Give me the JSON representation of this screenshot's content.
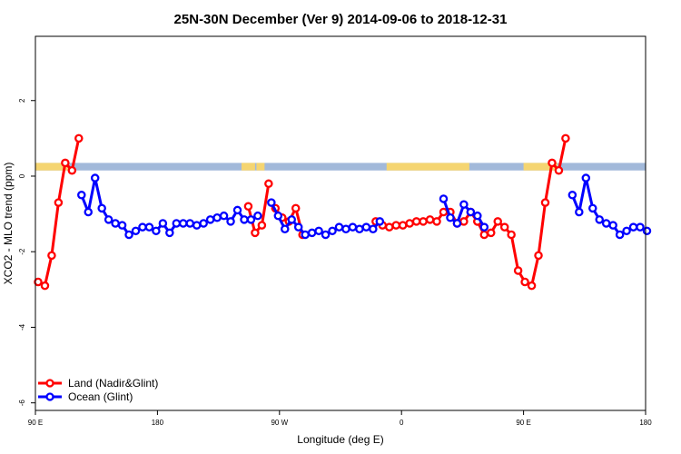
{
  "chart_data": {
    "type": "line",
    "title": "25N-30N December (Ver 9)   2014-09-06 to 2018-12-31",
    "xlabel": "Longitude (deg E)",
    "ylabel": "XCO2 - MLO trend (ppm)",
    "xlim": [
      90,
      540
    ],
    "ylim": [
      -6.2,
      3.7
    ],
    "grid": false,
    "legend_position": "bottom-left",
    "x_ticks": [
      {
        "value": 90,
        "label": "90 E"
      },
      {
        "value": 180,
        "label": "180"
      },
      {
        "value": 270,
        "label": "90 W"
      },
      {
        "value": 360,
        "label": "0"
      },
      {
        "value": 450,
        "label": "90 E"
      },
      {
        "value": 540,
        "label": "180"
      }
    ],
    "y_ticks": [
      {
        "value": -6,
        "label": "-6"
      },
      {
        "value": -4,
        "label": "-4"
      },
      {
        "value": -2,
        "label": "-2"
      },
      {
        "value": 0,
        "label": "0"
      },
      {
        "value": 2,
        "label": "2"
      }
    ],
    "land_sea_strip": {
      "y_range": [
        0.15,
        0.35
      ],
      "land_color": "#f5d571",
      "ocean_color": "#a2b9da",
      "land_segments": [
        [
          90,
          115
        ],
        [
          242,
          252
        ],
        [
          253,
          259
        ],
        [
          349,
          410
        ],
        [
          450,
          475
        ]
      ]
    },
    "series": [
      {
        "name": "Land (Nadir&Glint)",
        "color": "#ff0000",
        "segments": [
          {
            "x": [
              92,
              97,
              102,
              107,
              112,
              117,
              122
            ],
            "y": [
              -2.8,
              -2.9,
              -2.1,
              -0.7,
              0.35,
              0.15,
              1.0
            ]
          },
          {
            "x": [
              247,
              252,
              257,
              262
            ],
            "y": [
              -0.8,
              -1.5,
              -1.3,
              -0.2
            ]
          },
          {
            "x": [
              267,
              272,
              277,
              282,
              287
            ],
            "y": [
              -0.85,
              -1.1,
              -1.2,
              -0.85,
              -1.55
            ]
          },
          {
            "x": [
              341,
              346,
              351,
              356,
              361,
              366,
              371,
              376,
              381,
              386,
              391,
              396,
              401,
              406,
              411,
              416
            ],
            "y": [
              -1.2,
              -1.3,
              -1.35,
              -1.3,
              -1.3,
              -1.25,
              -1.2,
              -1.2,
              -1.15,
              -1.2,
              -0.95,
              -0.95,
              -1.25,
              -1.2,
              -0.95,
              -1.2
            ]
          },
          {
            "x": [
              416,
              421,
              426,
              431,
              436,
              441,
              446,
              451,
              456,
              461,
              466,
              471,
              476,
              481,
              486,
              491
            ],
            "y": [
              -1.2,
              -1.55,
              -1.5,
              -1.2,
              -1.35,
              -1.55,
              -2.5,
              -2.8,
              -2.9,
              -2.1,
              -0.7,
              0.35,
              0.15,
              1.0,
              null,
              null
            ]
          }
        ]
      },
      {
        "name": "Ocean (Glint)",
        "color": "#0000ff",
        "segments": [
          {
            "x": [
              124,
              129,
              134,
              139,
              144,
              149,
              154,
              159,
              164,
              169,
              174,
              179,
              184,
              189,
              194,
              199,
              204,
              209,
              214,
              219,
              224,
              229,
              234,
              239,
              244,
              249,
              254
            ],
            "y": [
              -0.5,
              -0.95,
              -0.05,
              -0.85,
              -1.15,
              -1.25,
              -1.3,
              -1.55,
              -1.45,
              -1.35,
              -1.35,
              -1.45,
              -1.25,
              -1.5,
              -1.25,
              -1.25,
              -1.25,
              -1.3,
              -1.25,
              -1.15,
              -1.1,
              -1.05,
              -1.2,
              -0.9,
              -1.15,
              -1.15,
              -1.05
            ]
          },
          {
            "x": [
              264,
              269,
              274,
              279,
              284,
              289,
              294,
              299,
              304,
              309,
              314,
              319,
              324,
              329,
              334,
              339,
              344
            ],
            "y": [
              -0.7,
              -1.05,
              -1.4,
              -1.15,
              -1.35,
              -1.55,
              -1.5,
              -1.45,
              -1.55,
              -1.45,
              -1.35,
              -1.4,
              -1.35,
              -1.4,
              -1.35,
              -1.4,
              -1.2
            ]
          },
          {
            "x": [
              391,
              396,
              401,
              406,
              411,
              416,
              421
            ],
            "y": [
              -0.6,
              -1.1,
              -1.25,
              -0.75,
              -0.95,
              -1.05,
              -1.35
            ]
          },
          {
            "x": [
              486,
              491,
              496,
              501,
              506,
              511,
              516,
              521,
              526,
              531,
              536,
              541
            ],
            "y": [
              -0.5,
              -0.95,
              -0.05,
              -0.85,
              -1.15,
              -1.25,
              -1.3,
              -1.55,
              -1.45,
              -1.35,
              -1.35,
              -1.45
            ]
          }
        ]
      }
    ]
  }
}
